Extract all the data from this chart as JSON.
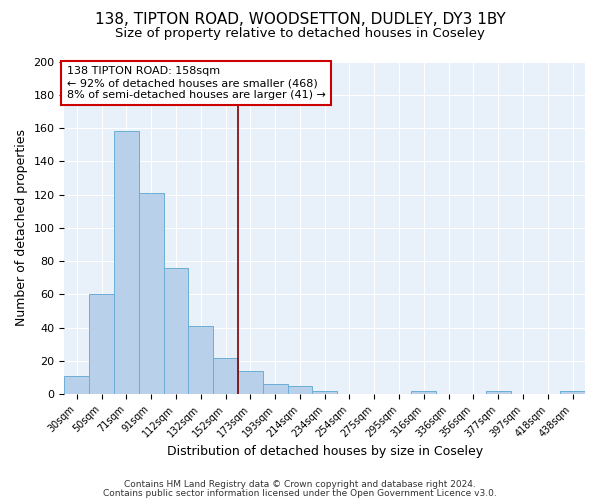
{
  "title1": "138, TIPTON ROAD, WOODSETTON, DUDLEY, DY3 1BY",
  "title2": "Size of property relative to detached houses in Coseley",
  "xlabel": "Distribution of detached houses by size in Coseley",
  "ylabel": "Number of detached properties",
  "categories": [
    "30sqm",
    "50sqm",
    "71sqm",
    "91sqm",
    "112sqm",
    "132sqm",
    "152sqm",
    "173sqm",
    "193sqm",
    "214sqm",
    "234sqm",
    "254sqm",
    "275sqm",
    "295sqm",
    "316sqm",
    "336sqm",
    "356sqm",
    "377sqm",
    "397sqm",
    "418sqm",
    "438sqm"
  ],
  "values": [
    11,
    60,
    158,
    121,
    76,
    41,
    22,
    14,
    6,
    5,
    2,
    0,
    0,
    0,
    2,
    0,
    0,
    2,
    0,
    0,
    2
  ],
  "bar_color": "#b8d0ea",
  "bar_edge_color": "#6baed6",
  "vline_x_index": 6,
  "vline_color": "#800000",
  "annotation_line1": "138 TIPTON ROAD: 158sqm",
  "annotation_line2": "← 92% of detached houses are smaller (468)",
  "annotation_line3": "8% of semi-detached houses are larger (41) →",
  "annotation_box_color": "#ffffff",
  "annotation_box_edge": "#cc0000",
  "ylim": [
    0,
    200
  ],
  "yticks": [
    0,
    20,
    40,
    60,
    80,
    100,
    120,
    140,
    160,
    180,
    200
  ],
  "footnote1": "Contains HM Land Registry data © Crown copyright and database right 2024.",
  "footnote2": "Contains public sector information licensed under the Open Government Licence v3.0.",
  "bg_color": "#e8f0fa",
  "fig_bg_color": "#ffffff",
  "title1_fontsize": 11,
  "title2_fontsize": 9.5,
  "axis_label_fontsize": 9,
  "tick_fontsize": 7,
  "annotation_fontsize": 8,
  "footnote_fontsize": 6.5
}
